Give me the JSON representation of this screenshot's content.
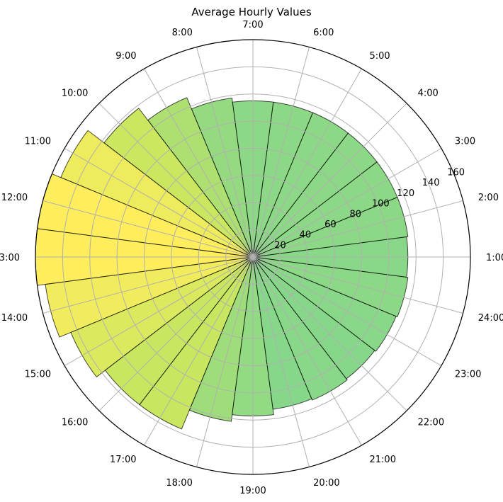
{
  "chart_data": {
    "type": "polar-bar",
    "title": "Average Hourly Values",
    "hours": [
      "1:00",
      "2:00",
      "3:00",
      "4:00",
      "5:00",
      "6:00",
      "7:00",
      "8:00",
      "9:00",
      "10:00",
      "11:00",
      "12:00",
      "13:00",
      "14:00",
      "15:00",
      "16:00",
      "17:00",
      "18:00",
      "19:00",
      "20:00",
      "21:00",
      "22:00",
      "23:00",
      "24:00"
    ],
    "values": [
      114,
      115,
      115,
      115,
      115,
      115,
      115,
      118,
      127,
      138,
      153,
      160,
      160,
      154,
      145,
      137,
      137,
      122,
      117,
      113,
      114,
      113,
      114,
      115
    ],
    "radial_ticks": [
      20,
      40,
      60,
      80,
      100,
      120,
      140,
      160
    ],
    "rlim": [
      0,
      160
    ],
    "angular_grid_labels": [
      "1:00",
      "2:00",
      "3:00",
      "4:00",
      "5:00",
      "6:00",
      "7:00",
      "8:00",
      "9:00",
      "10:00",
      "11:00",
      "12:00",
      "13:00",
      "14:00",
      "15:00",
      "16:00",
      "17:00",
      "18:00",
      "19:00",
      "20:00",
      "21:00",
      "22:00",
      "23:00",
      "24:00"
    ],
    "color_scale": {
      "low": "#5ec962",
      "mid": "#b5de2b",
      "high": "#fde725"
    },
    "grid": true
  }
}
